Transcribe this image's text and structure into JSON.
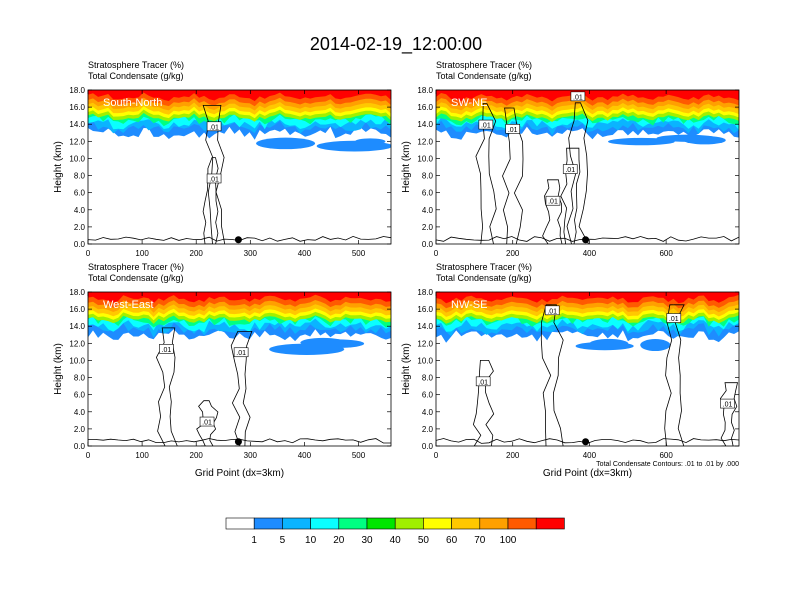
{
  "title": "2014-02-19_12:00:00",
  "chart_data": [
    {
      "type": "heatmap",
      "panel_label": "South-North",
      "field_lines": [
        "Stratosphere Tracer   (%)",
        "Total Condensate   (g/kg)"
      ],
      "ylabel": "Height (km)",
      "xlabel": "",
      "xlim": [
        0,
        560
      ],
      "ylim": [
        0,
        18
      ],
      "xticks": [
        0,
        100,
        200,
        300,
        400,
        500
      ],
      "yticks": [
        "0.0",
        "2.0",
        "4.0",
        "6.0",
        "8.0",
        "10.0",
        "12.0",
        "14.0",
        "16.0",
        "18.0"
      ],
      "marker_x": 278,
      "contour_labels": [
        {
          "text": ".01",
          "x": 233,
          "y": 13.7
        },
        {
          "text": ".01",
          "x": 233,
          "y": 7.6
        }
      ]
    },
    {
      "type": "heatmap",
      "panel_label": "SW-NE",
      "field_lines": [
        "Stratosphere Tracer   (%)",
        "Total Condensate   (g/kg)"
      ],
      "ylabel": "Height (km)",
      "xlabel": "",
      "xlim": [
        0,
        790
      ],
      "ylim": [
        0,
        18
      ],
      "xticks": [
        0,
        200,
        400,
        600
      ],
      "yticks": [
        "0.0",
        "2.0",
        "4.0",
        "6.0",
        "8.0",
        "10.0",
        "12.0",
        "14.0",
        "16.0",
        "18.0"
      ],
      "marker_x": 390,
      "contour_labels": [
        {
          "text": ".01",
          "x": 370,
          "y": 17.2
        },
        {
          "text": ".01",
          "x": 130,
          "y": 13.9
        },
        {
          "text": ".01",
          "x": 350,
          "y": 8.7
        },
        {
          "text": ".01",
          "x": 305,
          "y": 5.0
        },
        {
          "text": ".01",
          "x": 200,
          "y": 13.4
        }
      ]
    },
    {
      "type": "heatmap",
      "panel_label": "West-East",
      "field_lines": [
        "Stratosphere Tracer   (%)",
        "Total Condensate   (g/kg)"
      ],
      "ylabel": "Height (km)",
      "xlabel": "Grid Point (dx=3km)",
      "xlim": [
        0,
        560
      ],
      "ylim": [
        0,
        18
      ],
      "xticks": [
        0,
        100,
        200,
        300,
        400,
        500
      ],
      "yticks": [
        "0.0",
        "2.0",
        "4.0",
        "6.0",
        "8.0",
        "10.0",
        "12.0",
        "14.0",
        "16.0",
        "18.0"
      ],
      "marker_x": 278,
      "contour_labels": [
        {
          "text": ".01",
          "x": 145,
          "y": 11.3
        },
        {
          "text": ".01",
          "x": 283,
          "y": 10.9
        },
        {
          "text": ".01",
          "x": 220,
          "y": 2.8
        }
      ]
    },
    {
      "type": "heatmap",
      "panel_label": "NW-SE",
      "field_lines": [
        "Stratosphere Tracer   (%)",
        "Total Condensate   (g/kg)"
      ],
      "ylabel": "Height (km)",
      "xlabel": "Grid Point (dx=3km)",
      "xlim": [
        0,
        790
      ],
      "ylim": [
        0,
        18
      ],
      "xticks": [
        0,
        200,
        400,
        600
      ],
      "yticks": [
        "0.0",
        "2.0",
        "4.0",
        "6.0",
        "8.0",
        "10.0",
        "12.0",
        "14.0",
        "16.0",
        "18.0"
      ],
      "marker_x": 390,
      "contour_labels": [
        {
          "text": ".01",
          "x": 303,
          "y": 15.8
        },
        {
          "text": ".01",
          "x": 620,
          "y": 14.9
        },
        {
          "text": ".01",
          "x": 123,
          "y": 7.5
        },
        {
          "text": ".01",
          "x": 760,
          "y": 4.9
        }
      ],
      "footnote": "Total Condensate Contours: .01 to .01 by .000"
    }
  ],
  "colorbar": {
    "labels": [
      "1",
      "5",
      "10",
      "20",
      "30",
      "40",
      "50",
      "60",
      "70",
      "100"
    ],
    "colors": [
      "#ffffff",
      "#1e8cff",
      "#0ab4ff",
      "#0affff",
      "#00ff82",
      "#00e600",
      "#a0f000",
      "#ffff00",
      "#ffc800",
      "#ffa000",
      "#ff5a00",
      "#ff0000"
    ]
  }
}
